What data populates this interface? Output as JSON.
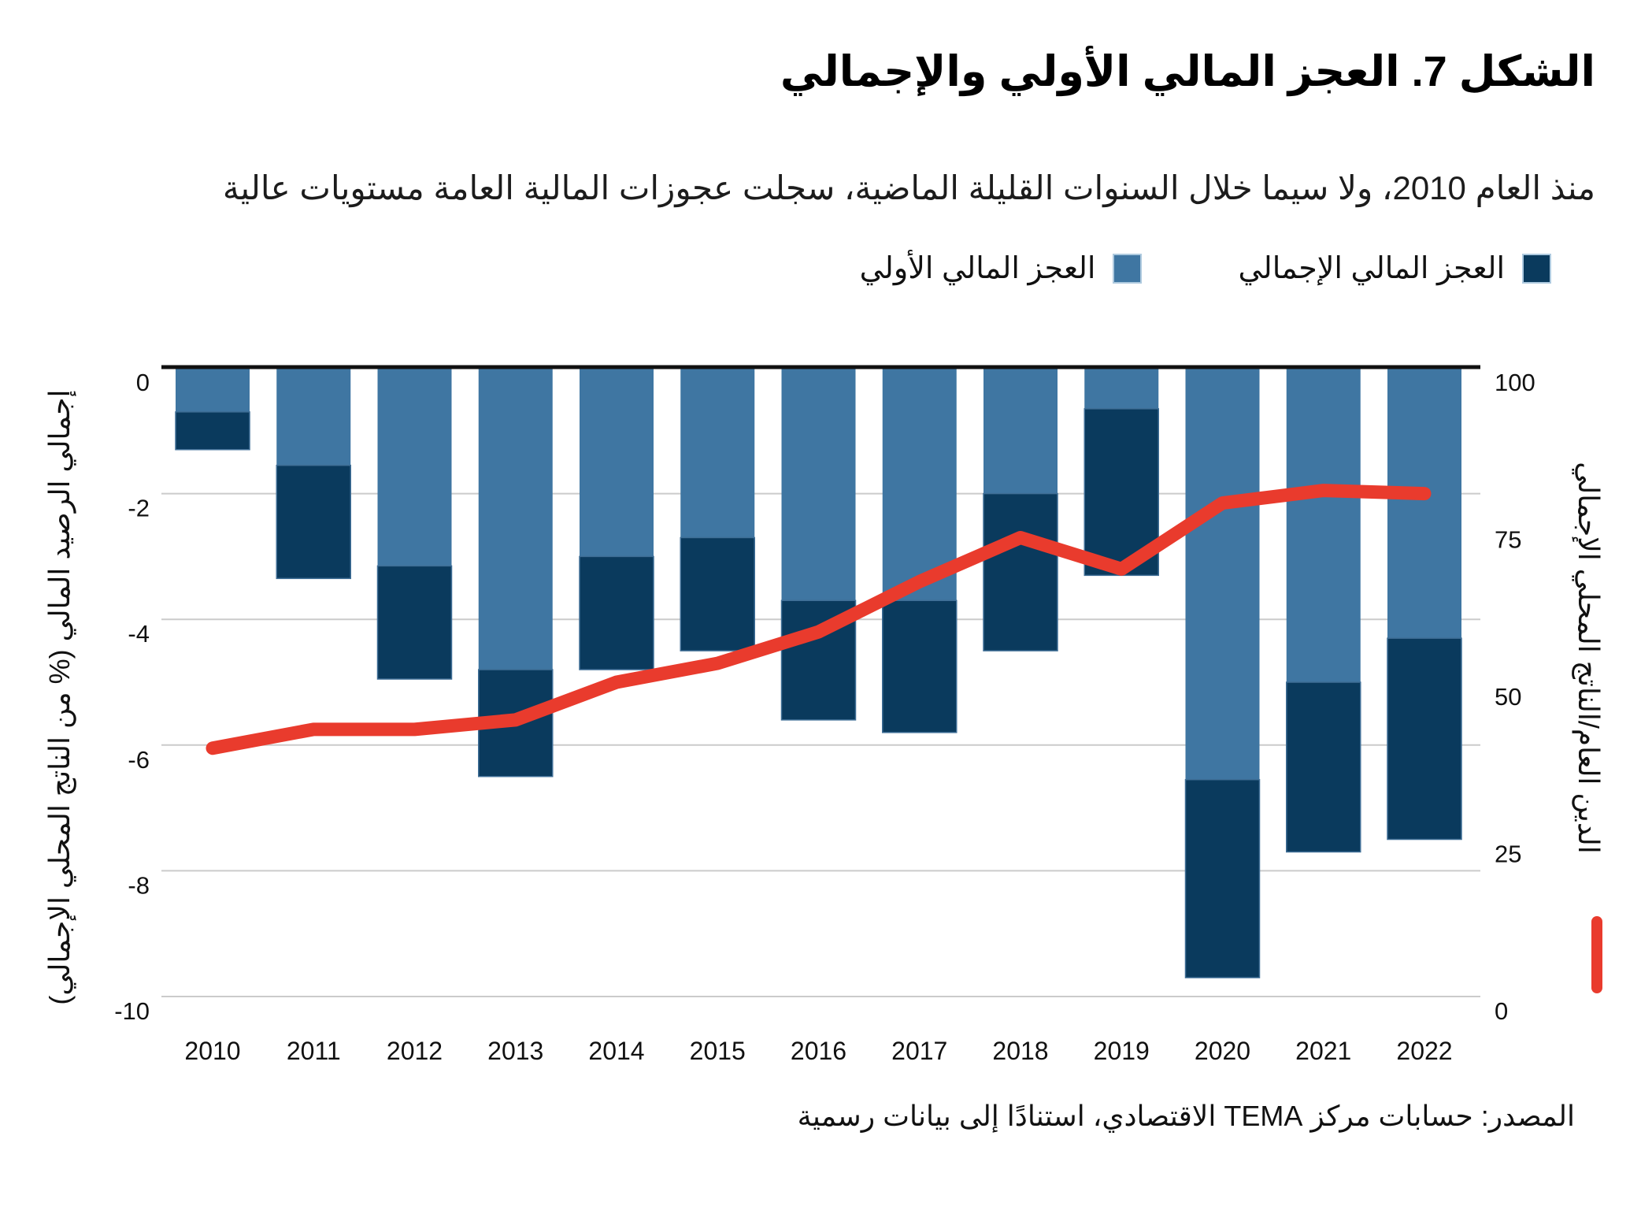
{
  "title": "الشكل 7. العجز المالي الأولي والإجمالي",
  "subtitle": "منذ العام 2010، ولا سيما خلال السنوات القليلة الماضية، سجلت عجوزات المالية العامة مستويات عالية",
  "source": "المصدر: حسابات مركز TEMA الاقتصادي، استنادًا إلى بيانات رسمية",
  "legend": {
    "items": [
      {
        "label": "العجز المالي الإجمالي",
        "color": "#0a3a5d",
        "series": "overall"
      },
      {
        "label": "العجز المالي الأولي",
        "color": "#3f76a2",
        "series": "primary"
      }
    ],
    "line_marker_color": "#e93b2d"
  },
  "colors": {
    "primary_bar": "#3f76a2",
    "overall_bar": "#0a3a5d",
    "debt_line": "#e93b2d",
    "gridline": "#cbcbcb",
    "zero_axis": "#111111",
    "text": "#111111"
  },
  "chart_data": {
    "type": "bar",
    "subtype": "stacked bars with overlaid line, negative bars hanging from zero line",
    "categories": [
      "2010",
      "2011",
      "2012",
      "2013",
      "2014",
      "2015",
      "2016",
      "2017",
      "2018",
      "2019",
      "2020",
      "2021",
      "2022"
    ],
    "series": [
      {
        "name": "العجز المالي الأولي",
        "type": "bar",
        "axis": "left",
        "color": "#3f76a2",
        "values": [
          -0.7,
          -1.55,
          -3.15,
          -4.8,
          -3.0,
          -2.7,
          -3.7,
          -3.7,
          -2.0,
          -0.65,
          -6.55,
          -5.0,
          -4.3
        ]
      },
      {
        "name": "العجز المالي الإجمالي",
        "type": "bar",
        "axis": "left",
        "color": "#0a3a5d",
        "values": [
          -1.3,
          -3.35,
          -4.95,
          -6.5,
          -4.8,
          -4.5,
          -5.6,
          -5.8,
          -4.5,
          -3.3,
          -9.7,
          -7.7,
          -7.5
        ],
        "note": "totals; dark segment drawn from primary value to this total"
      },
      {
        "name": "الدين العام/الناتج المحلي الإجمالي",
        "type": "line",
        "axis": "right",
        "color": "#e93b2d",
        "values": [
          39.5,
          42.5,
          42.5,
          44,
          50,
          53,
          58,
          66,
          73,
          68,
          78.5,
          80.5,
          80
        ]
      }
    ],
    "left_axis": {
      "label": "إجمالي الرصيد المالي (% من الناتج المحلي الإجمالي)",
      "ticks": [
        0,
        -2,
        -4,
        -6,
        -8,
        -10
      ],
      "range": [
        -10,
        0
      ]
    },
    "right_axis": {
      "label": "الدين العام/الناتج المحلي الإجمالي",
      "ticks": [
        100,
        75,
        50,
        25,
        0
      ],
      "range": [
        0,
        100
      ]
    },
    "grid": "horizontal gridlines at left-axis ticks",
    "legend_position": "top, right-aligned, RTL"
  }
}
